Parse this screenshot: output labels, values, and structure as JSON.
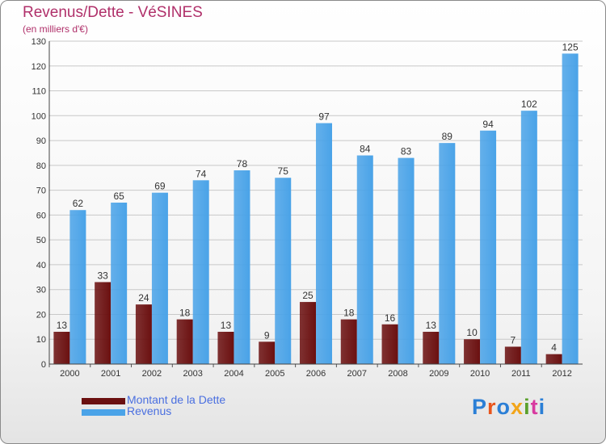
{
  "title": "Revenus/Dette - VéSINES",
  "subtitle": "(en milliers d'€)",
  "brand": {
    "text": "Proxiti",
    "colors": [
      "#2b7fd6",
      "#e8551c",
      "#2b7fd6",
      "#f2a51a",
      "#5aa02c",
      "#d83aa0",
      "#2b7fd6"
    ]
  },
  "legend": [
    {
      "label": "Montant de la Dette",
      "color": "#6b1010"
    },
    {
      "label": "Revenus",
      "color": "#4aa3e8"
    }
  ],
  "chart_data": {
    "type": "bar",
    "title": "Revenus/Dette - VéSINES",
    "subtitle": "(en milliers d'€)",
    "categories": [
      "2000",
      "2001",
      "2002",
      "2003",
      "2004",
      "2005",
      "2006",
      "2007",
      "2008",
      "2009",
      "2010",
      "2011",
      "2012"
    ],
    "series": [
      {
        "name": "Montant de la Dette",
        "color": "#6b1010",
        "values": [
          13,
          33,
          24,
          18,
          13,
          9,
          25,
          18,
          16,
          13,
          10,
          7,
          4
        ]
      },
      {
        "name": "Revenus",
        "color": "#4aa3e8",
        "values": [
          62,
          65,
          69,
          74,
          78,
          75,
          97,
          84,
          83,
          89,
          94,
          102,
          125
        ]
      }
    ],
    "ylim": [
      0,
      130
    ],
    "yticks": [
      0,
      10,
      20,
      30,
      40,
      50,
      60,
      70,
      80,
      90,
      100,
      110,
      120,
      130
    ],
    "grid": true,
    "data_labels": true,
    "legend_position": "bottom-left"
  }
}
